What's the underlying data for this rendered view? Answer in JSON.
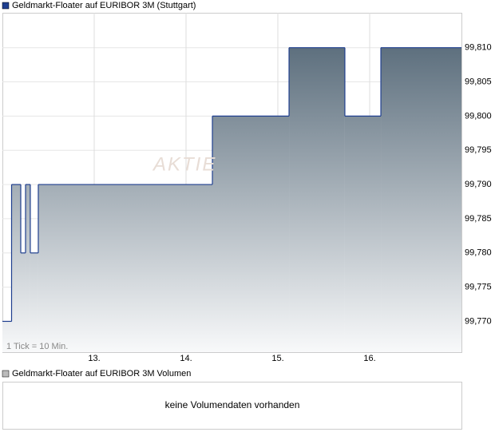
{
  "chart_data": {
    "type": "step-area",
    "title": "Geldmarkt-Floater auf EURIBOR 3M (Stuttgart)",
    "annotation": "1 Tick = 10 Min.",
    "watermark": "AKTIE",
    "color": "#1f3f8f",
    "x": [
      12.0,
      12.1,
      12.2,
      12.252,
      12.304,
      12.391,
      14.287,
      15.122,
      15.73,
      16.122
    ],
    "values": [
      99.77,
      99.79,
      99.78,
      99.79,
      99.78,
      99.79,
      99.8,
      99.81,
      99.8,
      99.81
    ],
    "xlim": [
      12,
      17
    ],
    "xticks": [
      {
        "value": 13,
        "label": "13."
      },
      {
        "value": 14,
        "label": "14."
      },
      {
        "value": 15,
        "label": "15."
      },
      {
        "value": 16,
        "label": "16."
      }
    ],
    "ylim": [
      99.7655,
      99.8151
    ],
    "yticks": [
      {
        "value": 99.77,
        "label": "99,770"
      },
      {
        "value": 99.775,
        "label": "99,775"
      },
      {
        "value": 99.78,
        "label": "99,780"
      },
      {
        "value": 99.785,
        "label": "99,785"
      },
      {
        "value": 99.79,
        "label": "99,790"
      },
      {
        "value": 99.795,
        "label": "99,795"
      },
      {
        "value": 99.8,
        "label": "99,800"
      },
      {
        "value": 99.805,
        "label": "99,805"
      },
      {
        "value": 99.81,
        "label": "99,810"
      }
    ],
    "grid": true,
    "volume": {
      "title": "Geldmarkt-Floater auf EURIBOR 3M Volumen",
      "message": "keine Volumendaten vorhanden"
    }
  }
}
